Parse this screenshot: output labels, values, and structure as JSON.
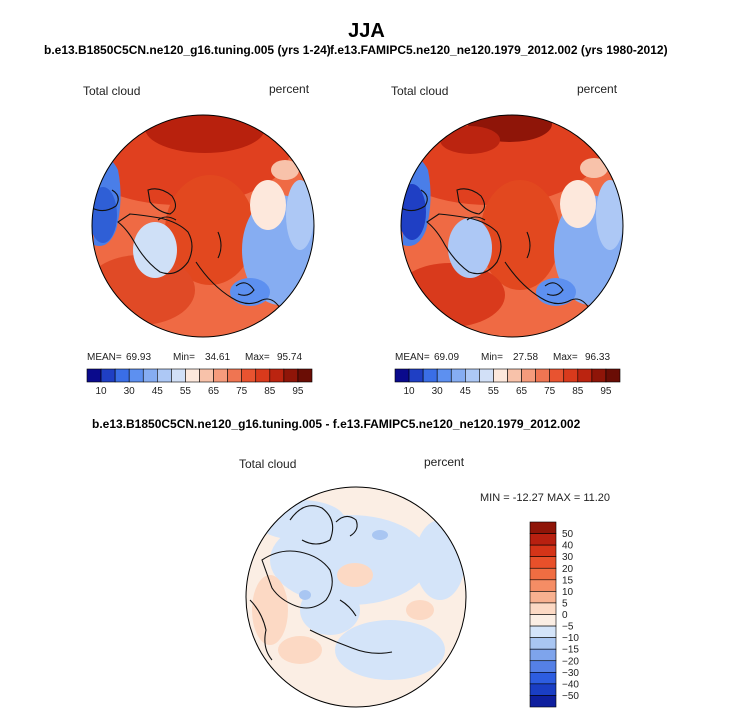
{
  "header": {
    "season": "JJA",
    "case_left": "b.e13.B1850C5CN.ne120_g16.tuning.005 (yrs 1-24)",
    "case_right": "f.e13.FAMIPC5.ne120_ne120.1979_2012.002 (yrs 1980-2012)",
    "diff_title": "b.e13.B1850C5CN.ne120_g16.tuning.005 - f.e13.FAMIPC5.ne120_ne120.1979_2012.002"
  },
  "chart_data": [
    {
      "type": "heatmap",
      "projection": "north-polar-stereographic",
      "variable_label": "Total cloud",
      "units_label": "percent",
      "stats": {
        "mean_label": "MEAN=",
        "mean": "69.93",
        "min_label": "Min=",
        "min": "34.61",
        "max_label": "Max=",
        "max": "95.74"
      },
      "colorbar": {
        "orientation": "horizontal",
        "levels": [
          10,
          20,
          30,
          40,
          45,
          50,
          55,
          60,
          65,
          70,
          75,
          80,
          85,
          90,
          95
        ],
        "tick_labels": [
          "10",
          "30",
          "45",
          "55",
          "65",
          "75",
          "85",
          "95"
        ],
        "colors": [
          "#0a0a8c",
          "#1f3fc4",
          "#3a6ee6",
          "#5d90f0",
          "#86adf2",
          "#adc8f5",
          "#d2e0f7",
          "#fde8dc",
          "#f8c2aa",
          "#f59b7c",
          "#ef7552",
          "#e85330",
          "#d93a1c",
          "#bb2410",
          "#8f1508",
          "#6a0d05"
        ]
      }
    },
    {
      "type": "heatmap",
      "projection": "north-polar-stereographic",
      "variable_label": "Total cloud",
      "units_label": "percent",
      "stats": {
        "mean_label": "MEAN=",
        "mean": "69.09",
        "min_label": "Min=",
        "min": "27.58",
        "max_label": "Max=",
        "max": "96.33"
      },
      "colorbar": {
        "orientation": "horizontal",
        "levels": [
          10,
          20,
          30,
          40,
          45,
          50,
          55,
          60,
          65,
          70,
          75,
          80,
          85,
          90,
          95
        ],
        "tick_labels": [
          "10",
          "30",
          "45",
          "55",
          "65",
          "75",
          "85",
          "95"
        ],
        "colors": [
          "#0a0a8c",
          "#1f3fc4",
          "#3a6ee6",
          "#5d90f0",
          "#86adf2",
          "#adc8f5",
          "#d2e0f7",
          "#fde8dc",
          "#f8c2aa",
          "#f59b7c",
          "#ef7552",
          "#e85330",
          "#d93a1c",
          "#bb2410",
          "#8f1508",
          "#6a0d05"
        ]
      }
    },
    {
      "type": "heatmap",
      "projection": "north-polar-stereographic",
      "variable_label": "Total cloud",
      "units_label": "percent",
      "stats_text": "MIN = -12.27  MAX =  11.20",
      "stats": {
        "min": -12.27,
        "max": 11.2
      },
      "colorbar": {
        "orientation": "vertical",
        "tick_labels": [
          "50",
          "40",
          "30",
          "20",
          "15",
          "10",
          "5",
          "0",
          "−5",
          "−10",
          "−15",
          "−20",
          "−30",
          "−40",
          "−50"
        ],
        "colors": [
          "#8f1508",
          "#b82010",
          "#d53418",
          "#e8502a",
          "#f06d42",
          "#f58d65",
          "#f8b190",
          "#fcd9c4",
          "#fbeee4",
          "#d4e4f9",
          "#a9c6f2",
          "#7ea4ec",
          "#5580e6",
          "#2d5de0",
          "#1a3ec4",
          "#0e1f9e"
        ]
      }
    }
  ]
}
